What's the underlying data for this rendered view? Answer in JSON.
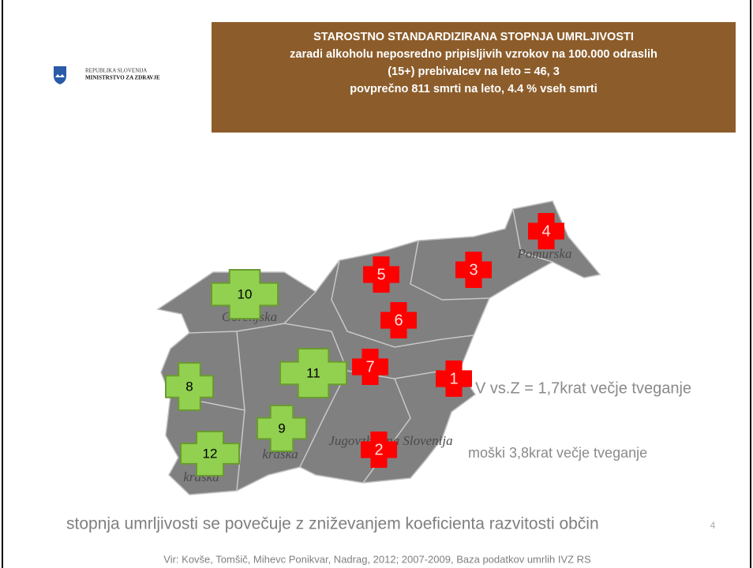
{
  "logo": {
    "line1": "REPUBLIKA SLOVENIJA",
    "line2": "MINISTRSTVO ZA ZDRAVJE"
  },
  "header": {
    "title_lines": [
      "STAROSTNO STANDARDIZIRANA STOPNJA UMRLJIVOSTI",
      "zaradi alkoholu neposredno pripisljivih vzrokov  na 100.000 odraslih",
      "(15+) prebivalcev na leto = 46, 3",
      "povprečno 811 smrti na leto, 4.4 % vseh smrti"
    ]
  },
  "map": {
    "regions": [
      "Pomurska",
      "Gorenjska",
      "Jugovzhodna Slovenija",
      "kraska",
      "kraska"
    ],
    "red_markers": [
      "4",
      "5",
      "3",
      "6",
      "7",
      "1",
      "2"
    ],
    "green_markers": [
      "10",
      "11",
      "8",
      "9",
      "12"
    ],
    "red_color": "#ff0000",
    "green_color": "#92d050"
  },
  "notes": [
    "V vs.Z = 1,7krat večje tveganje",
    "moški 3,8krat večje tveganje"
  ],
  "footer": {
    "statement": "stopnja umrljivosti se povečuje z zniževanjem koeficienta razvitosti občin",
    "source": "Vir: Kovše, Tomšič, Mihevc Ponikvar, Nadrag, 2012; 2007-2009, Baza podatkov umrlih IVZ RS",
    "page": "4"
  }
}
